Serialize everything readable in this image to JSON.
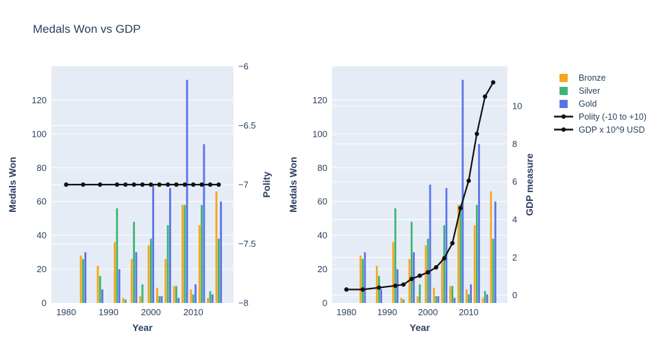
{
  "title": "Medals Won vs GDP",
  "colors": {
    "background": "#ffffff",
    "plot_bg": "#e5ecf6",
    "grid": "#ffffff",
    "text": "#2a3f5f",
    "bronze": "#f9a41d",
    "silver": "#3cb574",
    "gold": "#5a74e7",
    "line": "#111111"
  },
  "legend": {
    "position": "top-right",
    "items": [
      {
        "label": "Bronze",
        "type": "square",
        "color_key": "bronze"
      },
      {
        "label": "Silver",
        "type": "square",
        "color_key": "silver"
      },
      {
        "label": "Gold",
        "type": "square",
        "color_key": "gold"
      },
      {
        "label": "Polity (-10 to +10)",
        "type": "line",
        "color_key": "line"
      },
      {
        "label": "GDP x 10^9 USD",
        "type": "line",
        "color_key": "line"
      }
    ]
  },
  "chart_data": [
    {
      "type": "bar",
      "name": "medals-vs-polity",
      "xlabel": "Year",
      "ylabel_left": "Medals Won",
      "ylabel_right": "Polity",
      "x": [
        1980,
        1984,
        1988,
        1992,
        1994,
        1996,
        1998,
        2000,
        2002,
        2004,
        2006,
        2008,
        2010,
        2012,
        2014,
        2016
      ],
      "x_range": [
        1976.5,
        2019.5
      ],
      "x_ticks": [
        1980,
        1990,
        2000,
        2010
      ],
      "y_left_range": [
        0,
        140
      ],
      "y_left_ticks": [
        0,
        20,
        40,
        60,
        80,
        100,
        120
      ],
      "y_left_grid": [
        20,
        40,
        60,
        80,
        100,
        120
      ],
      "y_right_range": [
        -8,
        -6
      ],
      "y_right_ticks": [
        -8,
        -7.5,
        -7,
        -6.5,
        -6
      ],
      "y_right_grid": [
        -7.5,
        -7,
        -6.5
      ],
      "bar_series": [
        {
          "name": "Bronze",
          "color_key": "bronze",
          "values": [
            0,
            28,
            22,
            36,
            3,
            26,
            4,
            34,
            9,
            26,
            10,
            58,
            8,
            46,
            3,
            66
          ]
        },
        {
          "name": "Silver",
          "color_key": "silver",
          "values": [
            0,
            26,
            16,
            56,
            2,
            48,
            11,
            38,
            4,
            46,
            10,
            58,
            5,
            58,
            7,
            38
          ]
        },
        {
          "name": "Gold",
          "color_key": "gold",
          "values": [
            0,
            30,
            8,
            20,
            0,
            30,
            0,
            70,
            4,
            68,
            3,
            132,
            11,
            94,
            5,
            60
          ]
        }
      ],
      "line_series": {
        "name": "Polity (-10 to +10)",
        "axis": "right",
        "values": [
          -7,
          -7,
          -7,
          -7,
          -7,
          -7,
          -7,
          -7,
          -7,
          -7,
          -7,
          -7,
          -7,
          -7,
          -7,
          -7
        ]
      }
    },
    {
      "type": "bar",
      "name": "medals-vs-gdp",
      "xlabel": "Year",
      "ylabel_left": "Medals Won",
      "ylabel_right": "GDP measure",
      "x": [
        1980,
        1984,
        1988,
        1992,
        1994,
        1996,
        1998,
        2000,
        2002,
        2004,
        2006,
        2008,
        2010,
        2012,
        2014,
        2016
      ],
      "x_range": [
        1976.5,
        2019.5
      ],
      "x_ticks": [
        1980,
        1990,
        2000,
        2010
      ],
      "y_left_range": [
        0,
        140
      ],
      "y_left_ticks": [
        0,
        20,
        40,
        60,
        80,
        100,
        120
      ],
      "y_left_grid": [
        20,
        40,
        60,
        80,
        100,
        120
      ],
      "y_right_range": [
        -0.41,
        12.1
      ],
      "y_right_ticks": [
        0,
        2,
        4,
        6,
        8,
        10
      ],
      "y_right_grid": [
        0,
        2,
        4,
        6,
        8,
        10
      ],
      "bar_series": [
        {
          "name": "Bronze",
          "color_key": "bronze",
          "values": [
            0,
            28,
            22,
            36,
            3,
            26,
            4,
            34,
            9,
            26,
            10,
            58,
            8,
            46,
            3,
            66
          ]
        },
        {
          "name": "Silver",
          "color_key": "silver",
          "values": [
            0,
            26,
            16,
            56,
            2,
            48,
            11,
            38,
            4,
            46,
            10,
            58,
            5,
            58,
            7,
            38
          ]
        },
        {
          "name": "Gold",
          "color_key": "gold",
          "values": [
            0,
            30,
            8,
            20,
            0,
            30,
            0,
            70,
            4,
            68,
            3,
            132,
            11,
            94,
            5,
            60
          ]
        }
      ],
      "line_series": {
        "name": "GDP x 10^9 USD",
        "axis": "right",
        "values": [
          0.3,
          0.3,
          0.4,
          0.5,
          0.56,
          0.86,
          1.03,
          1.21,
          1.47,
          1.95,
          2.75,
          4.6,
          6.05,
          8.53,
          10.5,
          11.25
        ]
      }
    }
  ]
}
